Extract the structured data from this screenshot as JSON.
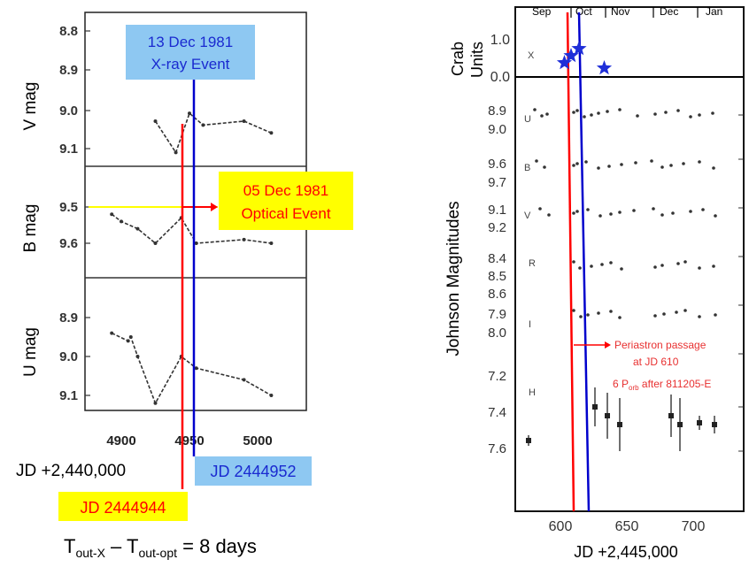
{
  "colors": {
    "red_line": "#ff0000",
    "blue_line": "#0000cc",
    "yellow_box": "#ffff00",
    "blue_box": "#8ec8f2",
    "star": "#1f2fd8",
    "data_ink": "#333333"
  },
  "left_panel": {
    "xray_event": {
      "line1": "13 Dec 1981",
      "line2": "X-ray Event"
    },
    "optical_event": {
      "line1": "05 Dec 1981",
      "line2": "Optical Event"
    },
    "jd_offset_label": "JD +2,440,000",
    "jd_blue_label": "JD 2444952",
    "jd_red_label": "JD 2444944",
    "equation": {
      "t": "T",
      "sub_x": "out-X",
      "minus": " – ",
      "sub_opt": "out-opt",
      "rest": " = 8 days"
    },
    "x_ticks": [
      "4900",
      "4950",
      "5000"
    ],
    "panels": [
      {
        "ylabel": "V mag",
        "ticks": [
          "8.8",
          "8.9",
          "9.0",
          "9.1"
        ]
      },
      {
        "ylabel": "B mag",
        "ticks": [
          "9.5",
          "9.6"
        ]
      },
      {
        "ylabel": "U mag",
        "ticks": [
          "8.9",
          "9.0",
          "9.1"
        ]
      }
    ]
  },
  "right_panel": {
    "months": [
      "Sep",
      "Oct",
      "Nov",
      "Dec",
      "Jan"
    ],
    "crab_label": [
      "Crab",
      "Units"
    ],
    "crab_ticks": [
      "1.0",
      "0.0"
    ],
    "ylabel": "Johnson Magnitudes",
    "band_ticks": [
      {
        "band": "U",
        "ticks": [
          "8.9",
          "9.0"
        ]
      },
      {
        "band": "B",
        "ticks": [
          "9.6",
          "9.7"
        ]
      },
      {
        "band": "V",
        "ticks": [
          "9.1",
          "9.2"
        ]
      },
      {
        "band": "R",
        "ticks": [
          "8.4",
          "8.5",
          "8.6"
        ]
      },
      {
        "band": "I",
        "ticks": [
          "7.9",
          "8.0"
        ]
      },
      {
        "band": "H",
        "ticks": [
          "7.2",
          "7.4",
          "7.6"
        ]
      }
    ],
    "x_ticks": [
      "600",
      "650",
      "700"
    ],
    "xlabel": "JD +2,445,000",
    "x_panel_letter": "X",
    "annotation": {
      "line1": "Periastron passage",
      "line2": "at JD 610",
      "line3_a": "6 P",
      "line3_sub": "orb",
      "line3_b": " after 811205-E"
    }
  },
  "chart_data": [
    {
      "type": "line",
      "x_label": "JD +2,440,000",
      "xlim": [
        4875,
        5025
      ],
      "events": {
        "optical_jd": 2444944,
        "xray_jd": 2444952,
        "delay_days": 8
      },
      "series": [
        {
          "name": "V mag",
          "x": [
            4925,
            4940,
            4950,
            4960,
            4990,
            5010
          ],
          "values": [
            9.03,
            9.11,
            9.01,
            9.04,
            9.03,
            9.06
          ],
          "ylim": [
            8.75,
            9.15
          ]
        },
        {
          "name": "B mag",
          "x": [
            4893,
            4900,
            4912,
            4925,
            4944,
            4955,
            4990,
            5010
          ],
          "values": [
            9.52,
            9.54,
            9.56,
            9.6,
            9.53,
            9.6,
            9.59,
            9.6
          ],
          "ylim": [
            9.35,
            9.75
          ]
        },
        {
          "name": "U mag",
          "x": [
            4893,
            4905,
            4907,
            4912,
            4925,
            4944,
            4955,
            4990,
            5010
          ],
          "values": [
            8.94,
            8.96,
            8.95,
            9.0,
            9.12,
            9.0,
            9.03,
            9.06,
            9.1
          ],
          "ylim": [
            8.8,
            9.12
          ]
        }
      ]
    },
    {
      "type": "scatter",
      "x_label": "JD +2,445,000",
      "xlim": [
        572,
        720
      ],
      "periastron_jd": 610,
      "xray_crab_units": {
        "x": [
          603,
          608,
          614,
          633
        ],
        "values": [
          0.4,
          0.6,
          0.8,
          0.25
        ]
      }
    }
  ]
}
